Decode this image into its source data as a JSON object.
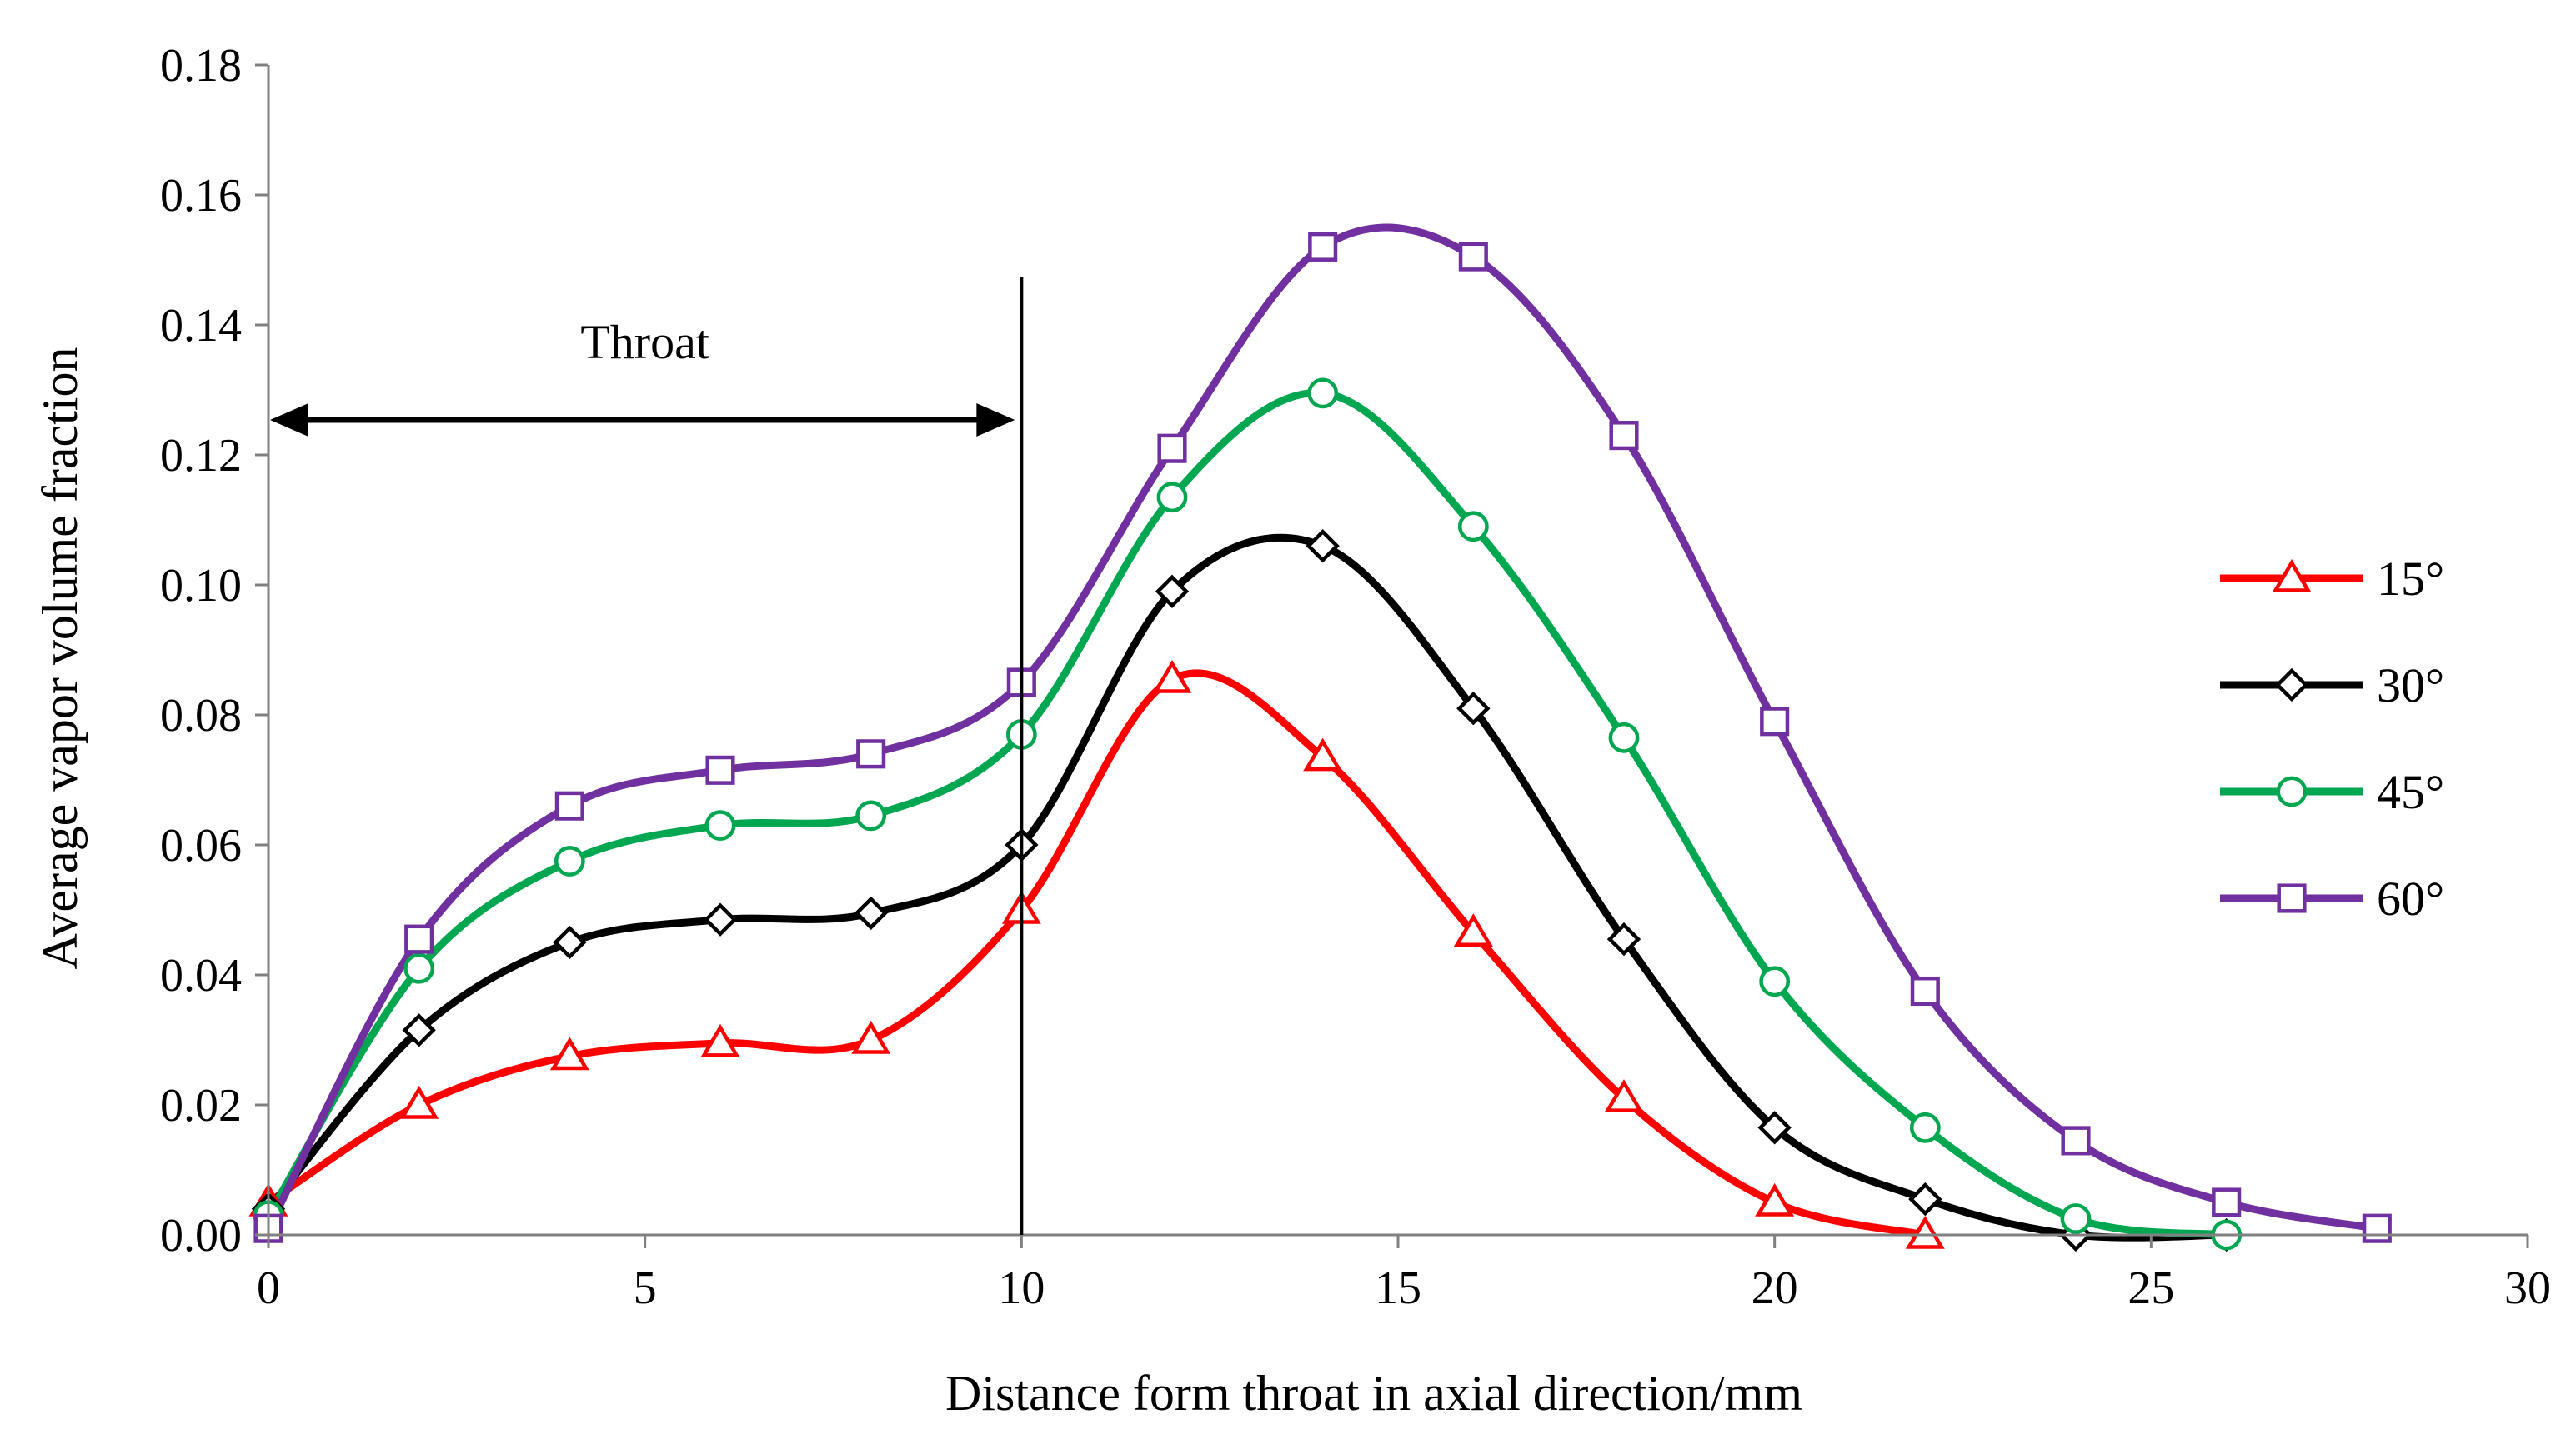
{
  "chart_data": {
    "type": "line",
    "title": "",
    "xlabel": "Distance form throat in axial direction/mm",
    "ylabel": "Average vapor volume fraction",
    "xlim": [
      0,
      30
    ],
    "ylim": [
      0,
      0.18
    ],
    "xticks": [
      0,
      5,
      10,
      15,
      20,
      25,
      30
    ],
    "xtick_labels": [
      "0",
      "5",
      "10",
      "15",
      "20",
      "25",
      "30"
    ],
    "yticks": [
      0,
      0.02,
      0.04,
      0.06,
      0.08,
      0.1,
      0.12,
      0.14,
      0.16,
      0.18
    ],
    "ytick_labels": [
      "0.00",
      "0.02",
      "0.04",
      "0.06",
      "0.08",
      "0.10",
      "0.12",
      "0.14",
      "0.16",
      "0.18"
    ],
    "grid": false,
    "legend_position": "right",
    "annotation": {
      "text": "Throat",
      "x_start": 0,
      "x_end": 10,
      "y": 0.125,
      "line_x": 10
    },
    "series": [
      {
        "name": "15°",
        "color": "#ff0000",
        "marker": "triangle",
        "x": [
          0,
          2,
          4,
          6,
          8,
          10,
          12,
          14,
          16,
          18,
          20,
          22
        ],
        "y": [
          0.005,
          0.02,
          0.0275,
          0.0295,
          0.03,
          0.05,
          0.0855,
          0.0735,
          0.0465,
          0.021,
          0.005,
          0.0
        ]
      },
      {
        "name": "30°",
        "color": "#000000",
        "marker": "diamond",
        "x": [
          0,
          2,
          4,
          6,
          8,
          10,
          12,
          14,
          16,
          18,
          20,
          22,
          24,
          26
        ],
        "y": [
          0.004,
          0.0315,
          0.045,
          0.0485,
          0.0495,
          0.06,
          0.099,
          0.106,
          0.081,
          0.0455,
          0.0165,
          0.0055,
          0.0,
          0.0
        ]
      },
      {
        "name": "45°",
        "color": "#00a650",
        "marker": "circle",
        "x": [
          0,
          2,
          4,
          6,
          8,
          10,
          12,
          14,
          16,
          18,
          20,
          22,
          24,
          26
        ],
        "y": [
          0.003,
          0.041,
          0.0575,
          0.063,
          0.0645,
          0.077,
          0.1135,
          0.1295,
          0.109,
          0.0765,
          0.039,
          0.0165,
          0.0025,
          0.0
        ]
      },
      {
        "name": "60°",
        "color": "#7030a0",
        "marker": "square",
        "x": [
          0,
          2,
          4,
          6,
          8,
          10,
          12,
          14,
          16,
          18,
          20,
          22,
          24,
          26,
          28
        ],
        "y": [
          0.001,
          0.0455,
          0.066,
          0.0715,
          0.074,
          0.085,
          0.121,
          0.152,
          0.1505,
          0.123,
          0.079,
          0.0375,
          0.0145,
          0.005,
          0.001
        ]
      }
    ]
  }
}
